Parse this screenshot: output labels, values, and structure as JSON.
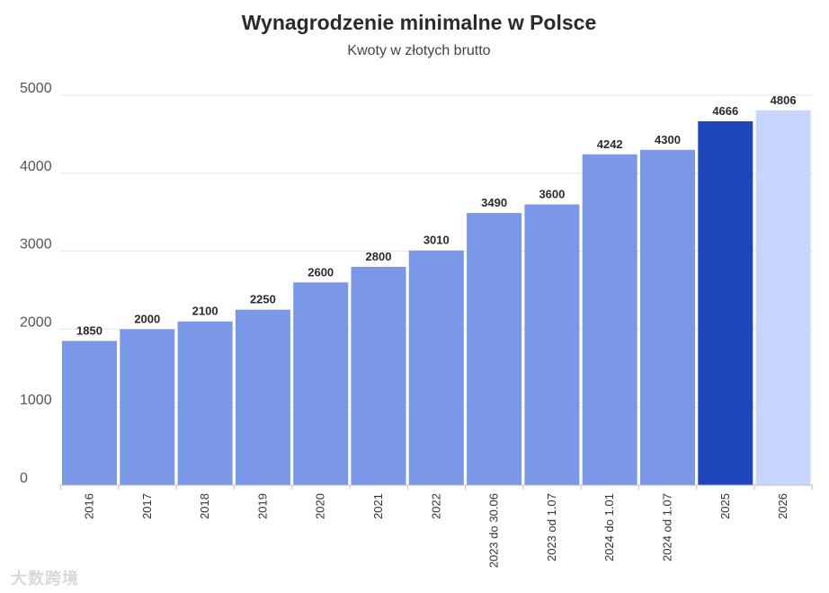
{
  "chart_data": {
    "type": "bar",
    "title": "Wynagrodzenie minimalne w Polsce",
    "subtitle": "Kwoty w złotych brutto",
    "xlabel": "",
    "ylabel": "",
    "categories": [
      "2016",
      "2017",
      "2018",
      "2019",
      "2020",
      "2021",
      "2022",
      "2023 do 30.06",
      "2023 od 1.07",
      "2024 do 1.01",
      "2024 od 1.07",
      "2025",
      "2026"
    ],
    "values": [
      1850,
      2000,
      2100,
      2250,
      2600,
      2800,
      3010,
      3490,
      3600,
      4242,
      4300,
      4666,
      4806
    ],
    "data_labels": [
      "1850",
      "2000",
      "2100",
      "2250",
      "2600",
      "2800",
      "3010",
      "3490",
      "3600",
      "4242",
      "4300",
      "4666",
      "4806"
    ],
    "ylim": [
      0,
      5000
    ],
    "yticks": [
      0,
      1000,
      2000,
      3000,
      4000,
      5000
    ],
    "ytick_labels": [
      "0",
      "1000",
      "2000",
      "3000",
      "4000",
      "5000"
    ],
    "grid": true,
    "legend": "none",
    "colors": {
      "default": "#7b97e8",
      "highlight_2025": "#1f45bb",
      "forecast_2026": "#c6d6fc",
      "grid": "#e6e6e6",
      "baseline": "#bfbfbf"
    },
    "bar_colors": [
      "#7b97e8",
      "#7b97e8",
      "#7b97e8",
      "#7b97e8",
      "#7b97e8",
      "#7b97e8",
      "#7b97e8",
      "#7b97e8",
      "#7b97e8",
      "#7b97e8",
      "#7b97e8",
      "#1f45bb",
      "#c6d6fc"
    ]
  },
  "watermark": "大数跨境"
}
